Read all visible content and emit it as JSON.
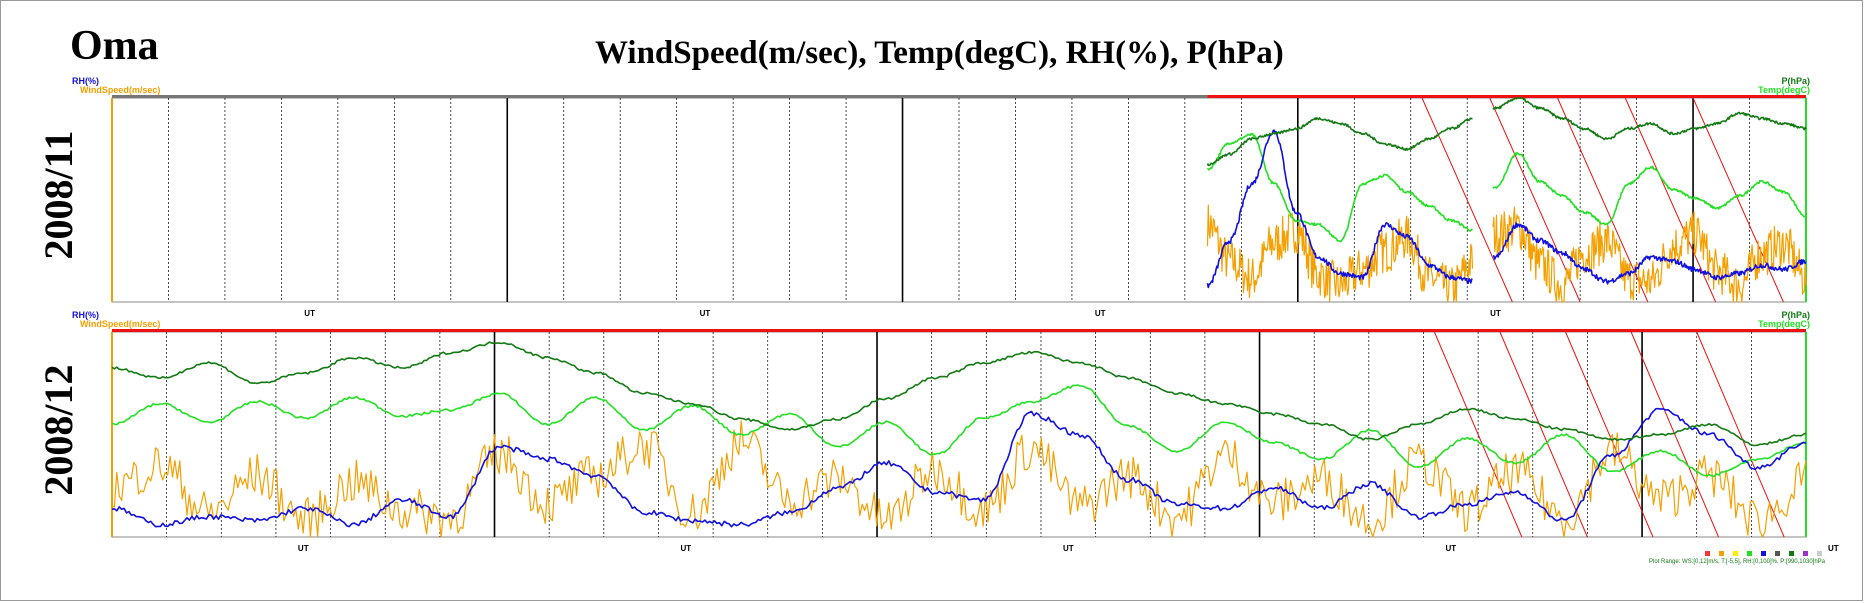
{
  "header": {
    "station": "Oma",
    "title": "WindSpeed(m/sec), Temp(degC), RH(%), P(hPa)"
  },
  "colors": {
    "wind": "#f5a000",
    "rh": "#1010e0",
    "temp": "#22e022",
    "pressure": "#127a12",
    "status_red": "#ee1111",
    "frame": "#888888"
  },
  "axis_labels": {
    "rh": "RH(%)",
    "wind": "WindSpeed(m/sec)",
    "pressure": "P(hPa)",
    "temp": "Temp(degC)",
    "x": "UT"
  },
  "panels": [
    {
      "month_label": "2008/11"
    },
    {
      "month_label": "2008/12"
    }
  ],
  "footer": {
    "legend_items": [
      "",
      "",
      "",
      "",
      "",
      "",
      "",
      "",
      ""
    ],
    "range_note": "Plot Range: WS:[0,12]m/s, T:[-5,5], RH:[0,100]%, P:[990,1030]hPa",
    "credit": ""
  },
  "chart_data": {
    "type": "line",
    "ylim": {
      "wind": [
        0,
        12
      ],
      "temp": [
        -5,
        5
      ],
      "rh": [
        0,
        100
      ],
      "pressure": [
        990,
        1030
      ]
    },
    "panels": [
      {
        "month": "2008/11",
        "days": 30,
        "data_start_day": 19.4,
        "gap_day": 24.1,
        "series": [
          {
            "key": "pressure",
            "name": "P(hPa)",
            "values": [
              1017,
              1019,
              1022,
              1023,
              1024,
              1026,
              1025,
              1023,
              1021,
              1020,
              1022,
              1024,
              1026,
              1028,
              1030,
              1028,
              1026,
              1024,
              1022,
              1024,
              1025,
              1023,
              1024,
              1025,
              1027,
              1026,
              1025,
              1024
            ]
          },
          {
            "key": "temp",
            "name": "Temp(degC)",
            "values": [
              1.5,
              2.8,
              3.2,
              0.8,
              -1.0,
              -1.2,
              -2.0,
              0.8,
              1.2,
              0.4,
              -0.3,
              -1.0,
              -1.5,
              0.6,
              2.3,
              0.9,
              0.2,
              -0.6,
              -1.2,
              0.8,
              1.6,
              0.5,
              0.1,
              -0.4,
              0.2,
              0.9,
              0.4,
              -0.8
            ]
          },
          {
            "key": "rh",
            "name": "RH(%)",
            "values": [
              8,
              30,
              58,
              84,
              44,
              22,
              14,
              12,
              38,
              32,
              18,
              12,
              10,
              22,
              38,
              30,
              24,
              16,
              10,
              14,
              22,
              20,
              16,
              12,
              14,
              18,
              16,
              20
            ]
          },
          {
            "key": "wind",
            "name": "WindSpeed(m/sec)",
            "values": [
              4.2,
              2.0,
              1.0,
              3.1,
              3.8,
              1.2,
              0.6,
              1.5,
              2.6,
              3.4,
              1.0,
              0.4,
              2.0,
              3.6,
              4.0,
              1.8,
              0.6,
              2.5,
              3.2,
              1.0,
              0.8,
              2.9,
              3.6,
              1.4,
              0.6,
              2.4,
              3.0,
              1.0
            ]
          }
        ]
      },
      {
        "month": "2008/12",
        "days": 31,
        "data_start_day": 0,
        "gap_day": null,
        "series": [
          {
            "key": "pressure",
            "name": "P(hPa)",
            "values": [
              1023,
              1021,
              1024,
              1020,
              1022,
              1025,
              1023,
              1026,
              1028,
              1025,
              1022,
              1018,
              1016,
              1013,
              1011,
              1013,
              1017,
              1021,
              1024,
              1026,
              1024,
              1021,
              1018,
              1016,
              1014,
              1012,
              1009,
              1012,
              1015,
              1013,
              1011,
              1009,
              1010,
              1012,
              1008,
              1010
            ]
          },
          {
            "key": "temp",
            "name": "Temp(degC)",
            "values": [
              0.5,
              1.5,
              0.6,
              1.6,
              0.8,
              1.8,
              0.9,
              1.2,
              2.0,
              0.5,
              1.8,
              0.2,
              1.4,
              0.0,
              1.0,
              -0.6,
              0.6,
              -1.0,
              0.8,
              1.6,
              2.4,
              0.4,
              -0.8,
              0.6,
              -0.4,
              -1.2,
              0.2,
              -1.6,
              -0.2,
              -1.4,
              0.0,
              -1.8,
              -0.8,
              -2.0,
              -1.2,
              -0.4
            ]
          },
          {
            "key": "rh",
            "name": "RH(%)",
            "values": [
              14,
              6,
              10,
              8,
              14,
              6,
              18,
              10,
              44,
              38,
              30,
              12,
              8,
              6,
              12,
              24,
              36,
              22,
              18,
              60,
              50,
              28,
              16,
              14,
              24,
              14,
              26,
              10,
              16,
              22,
              8,
              40,
              62,
              50,
              34,
              46
            ]
          },
          {
            "key": "wind",
            "name": "WindSpeed(m/sec)",
            "values": [
              2.5,
              3.8,
              1.0,
              3.2,
              0.6,
              2.8,
              1.2,
              0.8,
              4.5,
              1.6,
              3.2,
              5.0,
              1.0,
              5.2,
              1.8,
              3.0,
              0.6,
              3.6,
              1.2,
              4.8,
              1.4,
              3.2,
              0.8,
              4.4,
              1.6,
              3.0,
              0.6,
              4.0,
              1.2,
              3.4,
              0.8,
              4.6,
              1.8,
              3.2,
              0.6,
              2.8
            ]
          }
        ]
      }
    ]
  }
}
